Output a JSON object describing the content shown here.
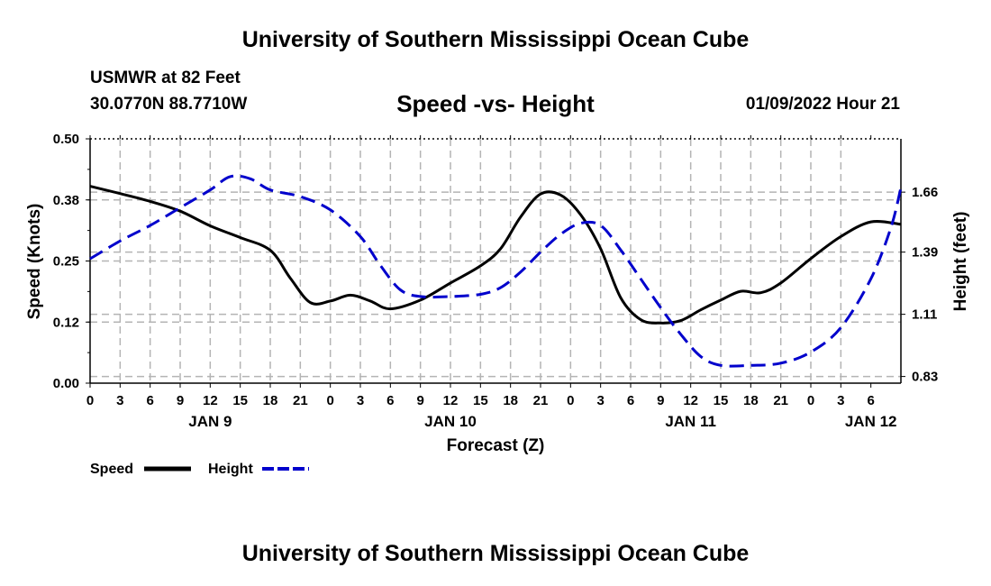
{
  "header": {
    "title": "University of Southern Mississippi Ocean Cube",
    "station": "USMWR at 82 Feet",
    "coordinates": "30.0770N  88.7710W",
    "chart_title": "Speed -vs- Height",
    "datetime": "01/09/2022 Hour 21"
  },
  "footer": {
    "title": "University of Southern Mississippi Ocean Cube"
  },
  "colors": {
    "speed": "#000000",
    "height": "#0000cc",
    "grid": "#b4b4b4"
  },
  "chart_data": {
    "type": "line",
    "title": "Speed -vs- Height",
    "xlabel": "Forecast (Z)",
    "ylabel": "Speed (Knots)",
    "y2label": "Height (feet)",
    "xlim": [
      0,
      81
    ],
    "ylim": [
      0,
      0.5
    ],
    "y2lim": [
      0.8,
      1.9
    ],
    "x_tick_labels": [
      "0",
      "3",
      "6",
      "9",
      "12",
      "15",
      "18",
      "21",
      "0",
      "3",
      "6",
      "9",
      "12",
      "15",
      "18",
      "21",
      "0",
      "3",
      "6",
      "9",
      "12",
      "15",
      "18",
      "21",
      "0",
      "3",
      "6"
    ],
    "date_labels": [
      {
        "label": "JAN 9",
        "x": 12
      },
      {
        "label": "JAN 10",
        "x": 36
      },
      {
        "label": "JAN 11",
        "x": 60
      },
      {
        "label": "JAN 12",
        "x": 78
      }
    ],
    "y_ticks": [
      0.0,
      0.125,
      0.25,
      0.375,
      0.5
    ],
    "y_tick_labels": [
      "0.00",
      "0.12",
      "0.25",
      "0.38",
      "0.50"
    ],
    "y2_ticks": [
      0.83,
      1.11,
      1.39,
      1.66
    ],
    "y2_tick_labels": [
      "0.83",
      "1.11",
      "1.39",
      "1.66"
    ],
    "legend": [
      {
        "name": "Speed",
        "style": "solid"
      },
      {
        "name": "Height",
        "style": "dashed"
      }
    ],
    "series": [
      {
        "name": "Speed",
        "axis": "left",
        "style": "solid",
        "x": [
          0,
          3,
          6,
          9,
          12,
          15,
          18,
          20,
          22,
          24,
          26,
          28,
          30,
          33,
          36,
          39,
          41,
          43,
          45,
          47,
          49,
          51,
          53,
          55,
          57,
          59,
          61,
          63,
          65,
          67,
          69,
          72,
          75,
          78,
          81
        ],
        "values": [
          0.403,
          0.388,
          0.372,
          0.352,
          0.322,
          0.298,
          0.272,
          0.215,
          0.165,
          0.168,
          0.18,
          0.168,
          0.152,
          0.17,
          0.205,
          0.24,
          0.275,
          0.34,
          0.387,
          0.385,
          0.345,
          0.275,
          0.175,
          0.13,
          0.123,
          0.128,
          0.15,
          0.17,
          0.188,
          0.185,
          0.205,
          0.255,
          0.3,
          0.33,
          0.325
        ]
      },
      {
        "name": "Height",
        "axis": "right",
        "style": "dashed",
        "x": [
          0,
          3,
          6,
          9,
          12,
          14,
          16,
          18,
          21,
          24,
          27,
          29,
          31,
          33,
          36,
          39,
          41,
          43,
          45,
          47,
          49,
          51,
          53,
          55,
          57,
          59,
          61,
          63,
          66,
          69,
          72,
          75,
          78,
          80,
          81
        ],
        "values": [
          1.36,
          1.44,
          1.51,
          1.59,
          1.67,
          1.73,
          1.72,
          1.67,
          1.64,
          1.58,
          1.46,
          1.33,
          1.22,
          1.19,
          1.19,
          1.2,
          1.23,
          1.3,
          1.39,
          1.47,
          1.52,
          1.51,
          1.4,
          1.27,
          1.14,
          1.02,
          0.92,
          0.88,
          0.88,
          0.89,
          0.94,
          1.05,
          1.27,
          1.5,
          1.68
        ]
      }
    ]
  }
}
